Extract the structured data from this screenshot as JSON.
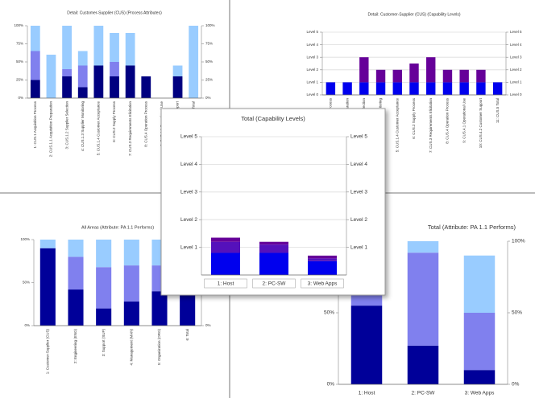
{
  "chart_data": [
    {
      "type": "bar",
      "stacked": true,
      "title": "Detail: Customer-Supplier (CUS) (Process Attributes)",
      "categories": [
        "1: CUS.1 Acquisition Process",
        "2: CUS.1.1 Acquisition Preparation",
        "3: CUS.1.2 Supplier Selection",
        "4: CUS.1.3 Supplier Monitoring",
        "5: CUS.1.4 Customer Acceptance",
        "6: CUS.2 Supply Process",
        "7: CUS.3 Requirements Elicitation",
        "8: CUS.4 Operation Process",
        "9: CUS.4.1 Operational Use",
        "10: CUS.4.2 Customer Support",
        "11: CUS.5 Total"
      ],
      "series": [
        {
          "color": "#000080",
          "values": [
            25,
            0,
            30,
            15,
            45,
            30,
            45,
            30,
            0,
            30,
            0
          ]
        },
        {
          "color": "#8080ee",
          "values": [
            40,
            0,
            10,
            30,
            0,
            20,
            0,
            0,
            0,
            0,
            0
          ]
        },
        {
          "color": "#99ccff",
          "values": [
            35,
            60,
            60,
            20,
            55,
            40,
            45,
            0,
            0,
            15,
            100
          ]
        }
      ],
      "ylim": [
        0,
        100
      ],
      "yticks": [
        {
          "value": 0,
          "label": "0%"
        },
        {
          "value": 25,
          "label": "25%"
        },
        {
          "value": 50,
          "label": "50%"
        },
        {
          "value": 75,
          "label": "75%"
        },
        {
          "value": 100,
          "label": "100%"
        }
      ],
      "grid": false
    },
    {
      "type": "bar",
      "stacked": true,
      "title": "Detail: Customer-Supplier (CUS) (Capability Levels)",
      "categories": [
        "1: CUS.1 Acquisition Process",
        "2: CUS.1.1 Acquisition Preparation",
        "3: CUS.1.2 Supplier Selection",
        "4: CUS.1.3 Supplier Monitoring",
        "5: CUS.1.4 Customer Acceptance",
        "6: CUS.2 Supply Process",
        "7: CUS.3 Requirements Elicitation",
        "8: CUS.4 Operation Process",
        "9: CUS.4.1 Operational Use",
        "10: CUS.4.2 Customer Support",
        "11: CUS.5 Total"
      ],
      "series": [
        {
          "color": "#0000ee",
          "values": [
            1,
            1,
            1,
            1,
            1,
            1,
            1,
            1,
            1,
            1,
            1
          ]
        },
        {
          "color": "#660099",
          "values": [
            0,
            0,
            2,
            1,
            1,
            1.5,
            2,
            1,
            1,
            1,
            0
          ]
        }
      ],
      "ylim": [
        0,
        5
      ],
      "yticks": [
        {
          "value": 0,
          "label": "Level 0"
        },
        {
          "value": 1,
          "label": "Level 1"
        },
        {
          "value": 2,
          "label": "Level 2"
        },
        {
          "value": 3,
          "label": "Level 3"
        },
        {
          "value": 4,
          "label": "Level 4"
        },
        {
          "value": 5,
          "label": "Level 5"
        }
      ],
      "grid": true
    },
    {
      "type": "bar",
      "stacked": true,
      "title": "All Areas (Attribute: PA 1.1 Performs)",
      "categories": [
        "1: Customer-Supplier (CUS)",
        "2: Engineering (ENG)",
        "3: Support (SUP)",
        "4: Management (MAN)",
        "5: Organization (ORG)",
        "6: Total"
      ],
      "series": [
        {
          "color": "#000099",
          "values": [
            90,
            42,
            20,
            28,
            40,
            40
          ]
        },
        {
          "color": "#8080ee",
          "values": [
            0,
            38,
            48,
            42,
            30,
            30
          ]
        },
        {
          "color": "#99ccff",
          "values": [
            10,
            20,
            32,
            30,
            30,
            30
          ]
        }
      ],
      "ylim": [
        0,
        100
      ],
      "yticks": [
        {
          "value": 0,
          "label": "0%"
        },
        {
          "value": 50,
          "label": "50%"
        },
        {
          "value": 100,
          "label": "100%"
        }
      ],
      "grid": false
    },
    {
      "type": "bar",
      "stacked": true,
      "title": "Total (Attribute: PA 1.1 Performs)",
      "categories": [
        "1: Host",
        "2: PC-SW",
        "3: Web Apps"
      ],
      "series": [
        {
          "color": "#000099",
          "values": [
            55,
            27,
            10
          ]
        },
        {
          "color": "#8080ee",
          "values": [
            45,
            65,
            40
          ]
        },
        {
          "color": "#99ccff",
          "values": [
            0,
            8,
            40
          ]
        }
      ],
      "ylim": [
        0,
        100
      ],
      "yticks": [
        {
          "value": 0,
          "label": "0%"
        },
        {
          "value": 50,
          "label": "50%"
        },
        {
          "value": 100,
          "label": "100%"
        }
      ],
      "grid": false
    },
    {
      "type": "bar",
      "stacked": true,
      "title": "Total (Capability Levels)",
      "categories": [
        "1: Host",
        "2: PC-SW",
        "3: Web Apps"
      ],
      "series": [
        {
          "color": "#0000ee",
          "values": [
            0.8,
            0.8,
            0.5
          ]
        },
        {
          "color": "#5511bb",
          "values": [
            0.4,
            0.3,
            0.1
          ]
        },
        {
          "color": "#660099",
          "values": [
            0.15,
            0.1,
            0.1
          ]
        }
      ],
      "ylim": [
        0,
        5
      ],
      "yticks": [
        {
          "value": 1,
          "label": "Level 1"
        },
        {
          "value": 2,
          "label": "Level 2"
        },
        {
          "value": 3,
          "label": "Level 3"
        },
        {
          "value": 4,
          "label": "Level 4"
        },
        {
          "value": 5,
          "label": "Level 5"
        }
      ],
      "grid": true
    }
  ]
}
